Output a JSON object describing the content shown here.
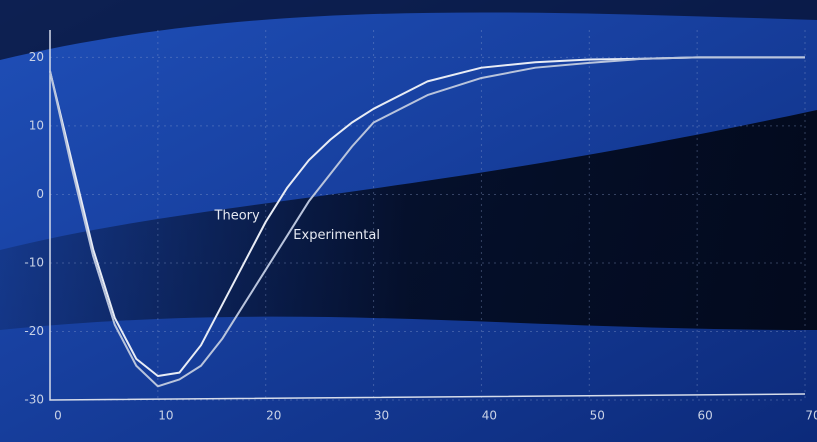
{
  "chart_data": {
    "type": "line",
    "x": [
      0,
      2,
      4,
      6,
      8,
      10,
      12,
      14,
      16,
      18,
      20,
      22,
      24,
      26,
      28,
      30,
      35,
      40,
      45,
      50,
      55,
      60,
      70
    ],
    "series": [
      {
        "name": "Theory",
        "color": "#e8ecf5",
        "values": [
          18,
          5,
          -8,
          -18,
          -24,
          -26.5,
          -26,
          -22,
          -16,
          -10,
          -4,
          1,
          5,
          8,
          10.5,
          12.5,
          16.5,
          18.5,
          19.3,
          19.7,
          19.8,
          20,
          20
        ]
      },
      {
        "name": "Experimental",
        "color": "#b9c4dc",
        "values": [
          18,
          4,
          -9,
          -19,
          -25,
          -28,
          -27,
          -25,
          -21,
          -16,
          -11,
          -6,
          -1,
          3,
          7,
          10.5,
          14.5,
          17,
          18.5,
          19.2,
          19.8,
          20,
          20
        ]
      }
    ],
    "xlim": [
      0,
      70
    ],
    "xticks": [
      0,
      10,
      20,
      30,
      40,
      50,
      60,
      70
    ],
    "ylim": [
      -30,
      24
    ],
    "yticks": [
      -30,
      -20,
      -10,
      0,
      10,
      20
    ],
    "grid": true
  }
}
